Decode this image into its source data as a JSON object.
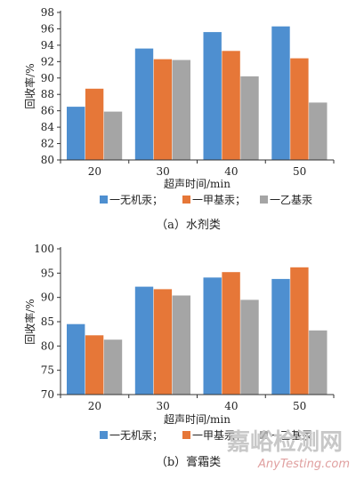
{
  "chart_data": [
    {
      "type": "bar",
      "caption": "（a）水剂类",
      "categories": [
        "20",
        "30",
        "40",
        "50"
      ],
      "series": [
        {
          "name": "一无机汞；",
          "color": "#4e8fd0",
          "values": [
            86.5,
            93.6,
            95.6,
            96.3
          ]
        },
        {
          "name": "一甲基汞；",
          "color": "#e67738",
          "values": [
            88.7,
            92.3,
            93.3,
            92.4
          ]
        },
        {
          "name": "一乙基汞",
          "color": "#a5a5a5",
          "values": [
            85.9,
            92.2,
            90.2,
            87.0
          ]
        }
      ],
      "xlabel": "超声时间/min",
      "ylabel": "回收率/%",
      "ylim": [
        80,
        98
      ],
      "yticks": [
        "80",
        "82",
        "84",
        "86",
        "88",
        "90",
        "92",
        "94",
        "96",
        "98"
      ],
      "grid": false,
      "legend_position": "bottom"
    },
    {
      "type": "bar",
      "caption": "（b）膏霜类",
      "categories": [
        "20",
        "30",
        "40",
        "50"
      ],
      "series": [
        {
          "name": "一无机汞；",
          "color": "#4e8fd0",
          "values": [
            84.5,
            92.2,
            94.1,
            93.8
          ]
        },
        {
          "name": "一甲基汞；",
          "color": "#e67738",
          "values": [
            82.2,
            91.7,
            95.2,
            96.2
          ]
        },
        {
          "name": "一乙基汞",
          "color": "#a5a5a5",
          "values": [
            81.3,
            90.4,
            89.5,
            83.2
          ]
        }
      ],
      "xlabel": "超声时间/min",
      "ylabel": "回收率/%",
      "ylim": [
        70,
        100
      ],
      "yticks": [
        "70",
        "75",
        "80",
        "85",
        "90",
        "95",
        "100"
      ],
      "grid": false,
      "legend_position": "bottom"
    }
  ],
  "watermark": {
    "text": "嘉峪检测网",
    "url": "AnyTesting.com"
  }
}
